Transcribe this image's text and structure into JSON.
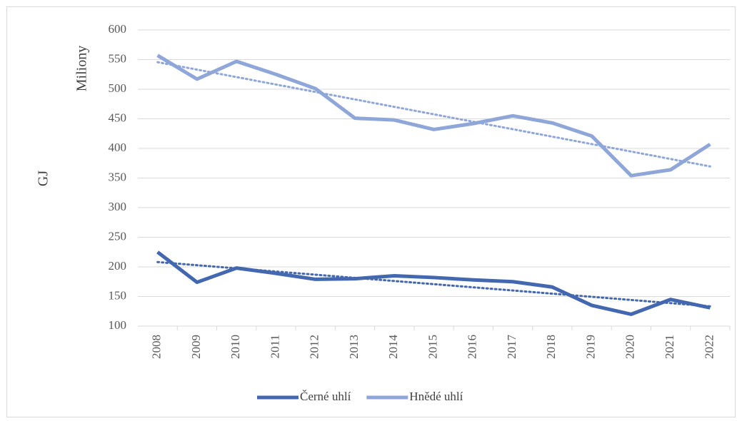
{
  "chart_data": {
    "type": "line",
    "y_label": "GJ",
    "y_unit_label": "Miliony",
    "categories": [
      "2008",
      "2009",
      "2010",
      "2011",
      "2012",
      "2013",
      "2014",
      "2015",
      "2016",
      "2017",
      "2018",
      "2019",
      "2020",
      "2021",
      "2022"
    ],
    "series": [
      {
        "name": "Černé uhlí",
        "color": "#4368b0",
        "trendline": "linear",
        "values": [
          225,
          174,
          198,
          189,
          179,
          180,
          185,
          182,
          178,
          175,
          166,
          135,
          120,
          145,
          131
        ]
      },
      {
        "name": "Hnědé uhlí",
        "color": "#8fa6d8",
        "trendline": "linear",
        "values": [
          557,
          517,
          547,
          525,
          501,
          451,
          448,
          432,
          442,
          455,
          443,
          421,
          354,
          364,
          407
        ]
      }
    ],
    "ylim": [
      100,
      600
    ],
    "yticks": [
      100,
      150,
      200,
      250,
      300,
      350,
      400,
      450,
      500,
      550,
      600
    ],
    "grid": true,
    "legend": "bottom"
  }
}
